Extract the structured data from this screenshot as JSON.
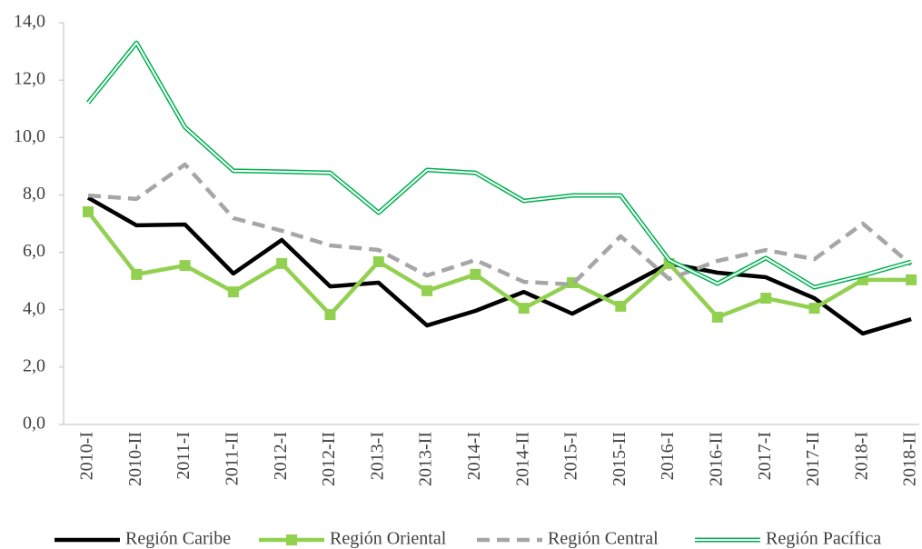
{
  "chart_data": {
    "type": "line",
    "categories": [
      "2010-I",
      "2010-II",
      "2011-I",
      "2011-II",
      "2012-I",
      "2012-II",
      "2013-I",
      "2013-II",
      "2014-I",
      "2014-II",
      "2015-I",
      "2015-II",
      "2016-I",
      "2016-II",
      "2017-I",
      "2017-II",
      "2018-I",
      "2018-II"
    ],
    "series": [
      {
        "name": "Región Caribe",
        "color": "#000000",
        "line_style": "solid",
        "values": [
          7.9,
          6.94,
          6.97,
          5.26,
          6.43,
          4.81,
          4.94,
          3.45,
          3.96,
          4.62,
          3.86,
          4.72,
          5.61,
          5.29,
          5.13,
          4.4,
          3.17,
          3.67
        ]
      },
      {
        "name": "Región Oriental",
        "color": "#92d050",
        "line_style": "solid",
        "marker": "square",
        "values": [
          7.41,
          5.23,
          5.54,
          4.62,
          5.61,
          3.83,
          5.67,
          4.66,
          5.23,
          4.05,
          4.94,
          4.12,
          5.61,
          3.74,
          4.4,
          4.05,
          5.04,
          5.04
        ]
      },
      {
        "name": "Región Central",
        "color": "#a6a6a6",
        "line_style": "dashed",
        "values": [
          7.98,
          7.86,
          9.06,
          7.19,
          6.75,
          6.24,
          6.08,
          5.19,
          5.73,
          4.97,
          4.88,
          6.56,
          5.07,
          5.7,
          6.08,
          5.76,
          7.0,
          5.57
        ]
      },
      {
        "name": "Región Pacífica",
        "color": "#00b050",
        "line_style": "double",
        "values": [
          11.21,
          13.3,
          10.36,
          8.84,
          8.81,
          8.77,
          7.38,
          8.87,
          8.77,
          7.79,
          7.98,
          7.98,
          5.73,
          4.91,
          5.8,
          4.78,
          5.19,
          5.67
        ]
      }
    ],
    "ylim": [
      0,
      14
    ],
    "yticks": [
      {
        "value": 0,
        "label": "0,0"
      },
      {
        "value": 2,
        "label": "2,0"
      },
      {
        "value": 4,
        "label": "4,0"
      },
      {
        "value": 6,
        "label": "6,0"
      },
      {
        "value": 8,
        "label": "8,0"
      },
      {
        "value": 10,
        "label": "10,0"
      },
      {
        "value": 12,
        "label": "12,0"
      },
      {
        "value": 14,
        "label": "14,0"
      }
    ],
    "legend": "bottom"
  }
}
